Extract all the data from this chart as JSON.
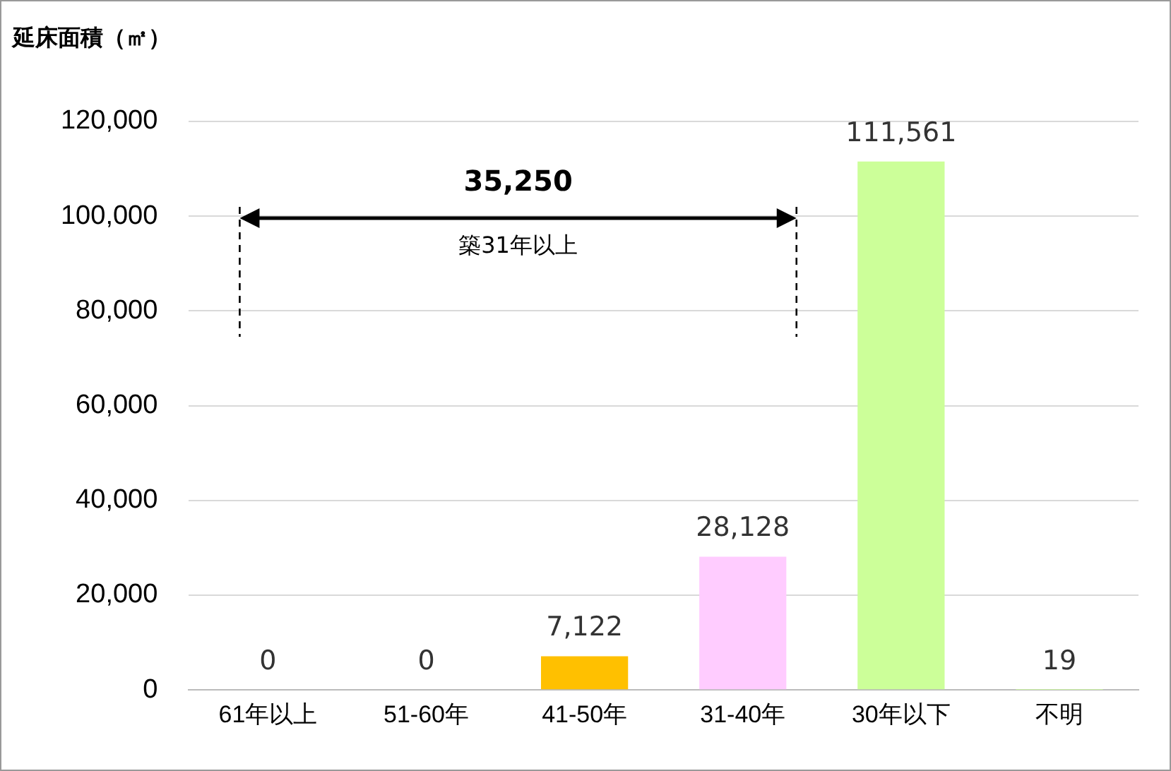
{
  "chart_data": {
    "type": "bar",
    "ylabel": "延床面積（㎡）",
    "categories": [
      "61年以上",
      "51-60年",
      "41-50年",
      "31-40年",
      "30年以下",
      "不明"
    ],
    "values": [
      0,
      0,
      7122,
      28128,
      111561,
      19
    ],
    "colors": [
      "#ffc000",
      "#ffc000",
      "#ffc000",
      "#ffccff",
      "#ccff99",
      "#ccff99"
    ],
    "value_labels": [
      "0",
      "0",
      "7,122",
      "28,128",
      "111,561",
      "19"
    ],
    "ylim": [
      0,
      120000
    ],
    "yticks": [
      0,
      {
        "value": 20000,
        "label": "20,000"
      },
      {
        "value": 40000,
        "label": "40,000"
      },
      {
        "value": 60000,
        "label": "60,000"
      },
      {
        "value": 80000,
        "label": "80,000"
      },
      {
        "value": 100000,
        "label": "100,000"
      },
      {
        "value": 120000,
        "label": "120,000"
      }
    ],
    "grid": "y",
    "legend": false,
    "annotations": [
      "35,250",
      "築31年以上"
    ]
  }
}
